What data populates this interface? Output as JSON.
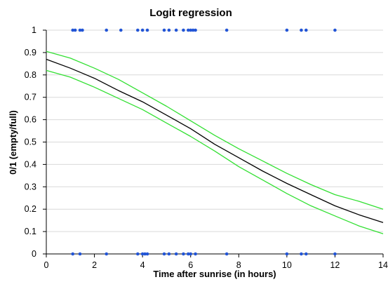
{
  "chart_data": {
    "type": "scatter",
    "title": "Logit regression",
    "xlabel": "Time after sunrise (in hours)",
    "ylabel": "0/1 (empty/full)",
    "xlim": [
      0,
      14
    ],
    "ylim": [
      0,
      1
    ],
    "xticks": [
      0,
      2,
      4,
      6,
      8,
      10,
      12,
      14
    ],
    "yticks": [
      0,
      0.1,
      0.2,
      0.3,
      0.4,
      0.5,
      0.6,
      0.7,
      0.8,
      0.9,
      1
    ],
    "grid": "horizontal",
    "legend": "none",
    "series": [
      {
        "kind": "points",
        "color": "#2255d6",
        "points": [
          {
            "x": 1.1,
            "y": 1
          },
          {
            "x": 1.2,
            "y": 1
          },
          {
            "x": 1.4,
            "y": 1
          },
          {
            "x": 1.5,
            "y": 1
          },
          {
            "x": 2.5,
            "y": 1
          },
          {
            "x": 3.1,
            "y": 1
          },
          {
            "x": 3.8,
            "y": 1
          },
          {
            "x": 4.0,
            "y": 1
          },
          {
            "x": 4.2,
            "y": 1
          },
          {
            "x": 4.9,
            "y": 1
          },
          {
            "x": 5.1,
            "y": 1
          },
          {
            "x": 5.4,
            "y": 1
          },
          {
            "x": 5.7,
            "y": 1
          },
          {
            "x": 5.9,
            "y": 1
          },
          {
            "x": 6.0,
            "y": 1
          },
          {
            "x": 6.1,
            "y": 1
          },
          {
            "x": 6.2,
            "y": 1
          },
          {
            "x": 7.5,
            "y": 1
          },
          {
            "x": 10.0,
            "y": 1
          },
          {
            "x": 10.6,
            "y": 1
          },
          {
            "x": 10.8,
            "y": 1
          },
          {
            "x": 12.0,
            "y": 1
          },
          {
            "x": 1.1,
            "y": 0
          },
          {
            "x": 1.4,
            "y": 0
          },
          {
            "x": 2.5,
            "y": 0
          },
          {
            "x": 3.8,
            "y": 0
          },
          {
            "x": 4.0,
            "y": 0
          },
          {
            "x": 4.1,
            "y": 0
          },
          {
            "x": 4.2,
            "y": 0
          },
          {
            "x": 4.9,
            "y": 0
          },
          {
            "x": 5.1,
            "y": 0
          },
          {
            "x": 5.4,
            "y": 0
          },
          {
            "x": 5.7,
            "y": 0
          },
          {
            "x": 5.9,
            "y": 0
          },
          {
            "x": 6.0,
            "y": 0
          },
          {
            "x": 6.2,
            "y": 0
          },
          {
            "x": 7.5,
            "y": 0
          },
          {
            "x": 10.0,
            "y": 0
          },
          {
            "x": 10.6,
            "y": 0
          },
          {
            "x": 10.8,
            "y": 0
          },
          {
            "x": 12.0,
            "y": 0
          }
        ]
      },
      {
        "kind": "line",
        "color": "#000000",
        "x": [
          0,
          1,
          2,
          3,
          4,
          5,
          6,
          7,
          8,
          9,
          10,
          11,
          12,
          13,
          14
        ],
        "y": [
          0.87,
          0.83,
          0.785,
          0.73,
          0.68,
          0.62,
          0.56,
          0.49,
          0.43,
          0.37,
          0.315,
          0.265,
          0.215,
          0.175,
          0.14
        ]
      },
      {
        "kind": "line",
        "color": "#33e033",
        "x": [
          0,
          1,
          2,
          3,
          4,
          5,
          6,
          7,
          8,
          9,
          10,
          11,
          12,
          13,
          14
        ],
        "y": [
          0.905,
          0.875,
          0.83,
          0.78,
          0.72,
          0.66,
          0.595,
          0.53,
          0.47,
          0.415,
          0.36,
          0.31,
          0.265,
          0.235,
          0.2
        ]
      },
      {
        "kind": "line",
        "color": "#33e033",
        "x": [
          0,
          1,
          2,
          3,
          4,
          5,
          6,
          7,
          8,
          9,
          10,
          11,
          12,
          13,
          14
        ],
        "y": [
          0.82,
          0.79,
          0.745,
          0.695,
          0.645,
          0.585,
          0.525,
          0.46,
          0.39,
          0.33,
          0.27,
          0.215,
          0.17,
          0.125,
          0.09
        ]
      }
    ]
  }
}
